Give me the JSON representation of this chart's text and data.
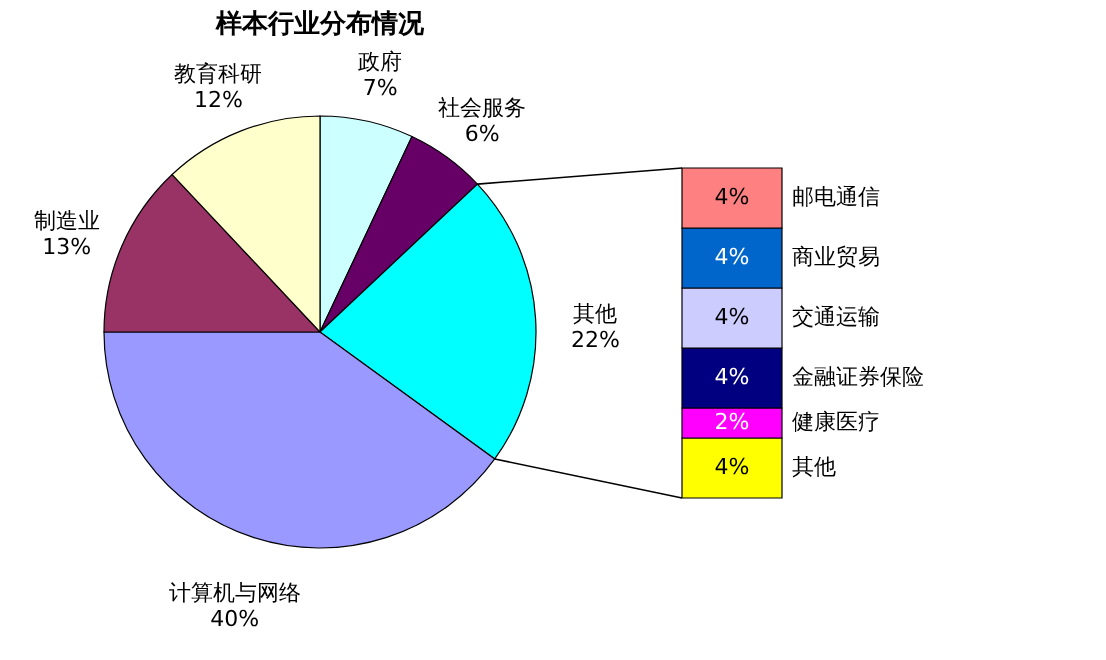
{
  "chart_data": [
    {
      "type": "pie",
      "title": "样本行业分布情况",
      "categories": [
        "政府",
        "社会服务",
        "其他",
        "计算机与网络",
        "制造业",
        "教育科研"
      ],
      "values": [
        7,
        6,
        22,
        40,
        13,
        12
      ],
      "value_labels": [
        "7%",
        "6%",
        "22%",
        "40%",
        "13%",
        "12%"
      ],
      "colors": [
        "#ccffff",
        "#660066",
        "#00ffff",
        "#9999ff",
        "#993366",
        "#ffffcc"
      ]
    },
    {
      "type": "bar",
      "stacked": true,
      "tick_labels": false,
      "categories": [
        null
      ],
      "series": [
        {
          "name": "其他",
          "color": "#ffff00",
          "values": [
            4
          ],
          "value_labels": [
            "4%"
          ]
        },
        {
          "name": "健康医疗",
          "color": "#ff00ff",
          "values": [
            2
          ],
          "value_labels": [
            "2%"
          ]
        },
        {
          "name": "金融证券保险",
          "color": "#000080",
          "values": [
            4
          ],
          "value_labels": [
            "4%"
          ]
        },
        {
          "name": "交通运输",
          "color": "#ccccff",
          "values": [
            4
          ],
          "value_labels": [
            "4%"
          ]
        },
        {
          "name": "商业贸易",
          "color": "#0066cc",
          "values": [
            4
          ],
          "value_labels": [
            "4%"
          ]
        },
        {
          "name": "邮电通信",
          "color": "#ff8080",
          "values": [
            4
          ],
          "value_labels": [
            "4%"
          ]
        }
      ]
    }
  ]
}
